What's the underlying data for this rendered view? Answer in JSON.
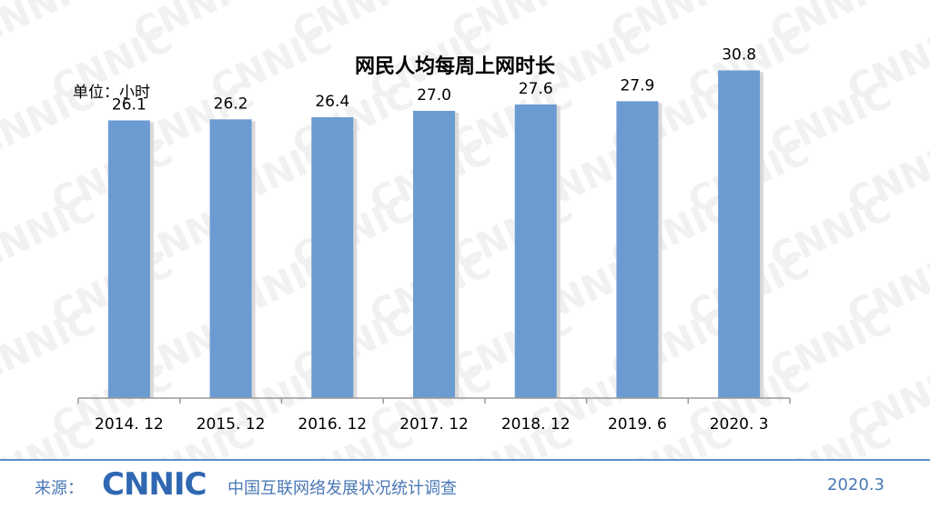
{
  "chart_data": {
    "type": "bar",
    "title": "网民人均每周上网时长",
    "unit_label": "单位：小时",
    "categories": [
      "2014. 12",
      "2015. 12",
      "2016. 12",
      "2017. 12",
      "2018. 12",
      "2019. 6",
      "2020. 3"
    ],
    "values": [
      26.1,
      26.2,
      26.4,
      27.0,
      27.6,
      27.9,
      30.8
    ],
    "value_labels": [
      "26.1",
      "26.2",
      "26.4",
      "27.0",
      "27.6",
      "27.9",
      "30.8"
    ],
    "ylim": [
      0,
      34
    ],
    "grid": false,
    "legend": "none",
    "bar_color": "#6b9bd1",
    "watermark_text": "CNNIC"
  },
  "footer": {
    "source_label": "来源：",
    "logo_text": "CNNIC",
    "org_name": "中国互联网络发展状况统计调查",
    "date": "2020.3"
  },
  "colors": {
    "accent": "#2f67b2",
    "footer_text": "#4a78b5",
    "footer_line": "#5b8dc8",
    "axis": "#999999"
  }
}
